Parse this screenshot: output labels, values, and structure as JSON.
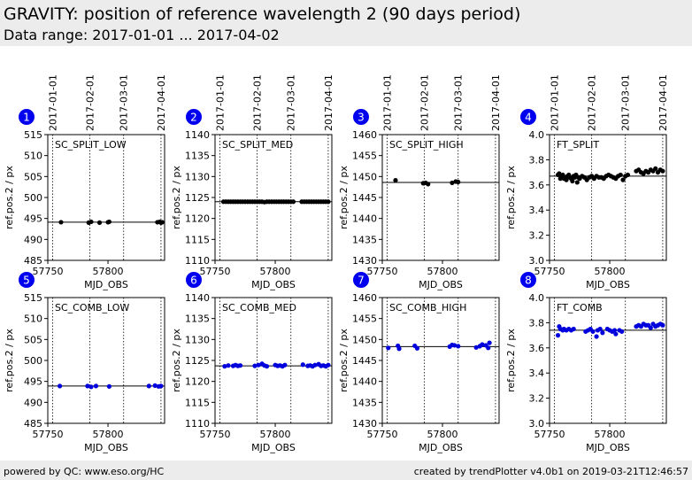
{
  "header": {
    "title": "GRAVITY: position of reference wavelength 2 (90 days period)",
    "subtitle": "Data range: 2017-01-01 ... 2017-04-02"
  },
  "footer": {
    "left": "powered by QC: www.eso.org/HC",
    "right": "created by trendPlotter v4.0b1 on 2019-03-21T12:46:57"
  },
  "date_labels": [
    "2017-01-01",
    "2017-02-01",
    "2017-03-01",
    "2017-04-01"
  ],
  "date_mjds": [
    57754,
    57785,
    57813,
    57844
  ],
  "colors": {
    "upper": "#000000",
    "lower": "#0000dd",
    "badge": "#0000ee"
  },
  "chart_data": [
    {
      "type": "scatter",
      "panel": "1",
      "title": "SC_SPLIT_LOW",
      "xlabel": "MJD_OBS",
      "ylabel": "ref.pos.2 / px",
      "xlim": [
        57750,
        57847
      ],
      "xticks": [
        57750,
        57800
      ],
      "ylim": [
        485,
        515
      ],
      "yticks": [
        485,
        490,
        495,
        500,
        505,
        510,
        515
      ],
      "ref": 494.1,
      "x": [
        57761,
        57784,
        57786,
        57793,
        57800,
        57801,
        57841,
        57843,
        57844,
        57845
      ],
      "y": [
        494.1,
        494.0,
        494.2,
        494.0,
        494.1,
        494.2,
        494.1,
        494.2,
        494.0,
        494.1
      ]
    },
    {
      "type": "scatter",
      "panel": "2",
      "title": "SC_SPLIT_MED",
      "xlabel": "MJD_OBS",
      "ylabel": "ref.pos.2 / px",
      "xlim": [
        57750,
        57847
      ],
      "xticks": [
        57750,
        57800
      ],
      "ylim": [
        1110,
        1140
      ],
      "yticks": [
        1110,
        1115,
        1120,
        1125,
        1130,
        1135,
        1140
      ],
      "ref": 1124.0,
      "x": [
        57757,
        57759,
        57761,
        57763,
        57765,
        57767,
        57769,
        57771,
        57773,
        57775,
        57777,
        57779,
        57781,
        57783,
        57785,
        57787,
        57789,
        57791,
        57793,
        57795,
        57797,
        57799,
        57801,
        57803,
        57805,
        57807,
        57809,
        57811,
        57813,
        57815,
        57822,
        57824,
        57826,
        57828,
        57830,
        57832,
        57834,
        57836,
        57838,
        57840,
        57842,
        57844
      ],
      "y": [
        1124.0,
        1124.0,
        1124.0,
        1124.0,
        1124.0,
        1124.0,
        1124.0,
        1124.0,
        1124.0,
        1124.0,
        1124.0,
        1124.0,
        1124.0,
        1124.0,
        1124.0,
        1124.0,
        1124.0,
        1123.9,
        1124.0,
        1124.0,
        1124.0,
        1124.0,
        1124.0,
        1124.0,
        1124.0,
        1124.0,
        1124.0,
        1124.0,
        1124.0,
        1124.0,
        1124.0,
        1124.0,
        1124.0,
        1124.0,
        1124.0,
        1124.0,
        1124.0,
        1124.0,
        1124.0,
        1124.0,
        1124.0,
        1124.0
      ]
    },
    {
      "type": "scatter",
      "panel": "3",
      "title": "SC_SPLIT_HIGH",
      "xlabel": "MJD_OBS",
      "ylabel": "ref.pos.2 / px",
      "xlim": [
        57750,
        57847
      ],
      "xticks": [
        57750,
        57800
      ],
      "ylim": [
        1430,
        1460
      ],
      "yticks": [
        1430,
        1435,
        1440,
        1445,
        1450,
        1455,
        1460
      ],
      "ref": 1448.6,
      "x": [
        57761,
        57784,
        57786,
        57788,
        57808,
        57811,
        57813
      ],
      "y": [
        1449.1,
        1448.4,
        1448.5,
        1448.2,
        1448.5,
        1448.8,
        1448.7
      ]
    },
    {
      "type": "scatter",
      "panel": "4",
      "title": "FT_SPLIT",
      "xlabel": "MJD_OBS",
      "ylabel": "ref.pos.2 / px",
      "xlim": [
        57750,
        57847
      ],
      "xticks": [
        57750,
        57800
      ],
      "ylim": [
        3.0,
        4.0
      ],
      "yticks": [
        3.0,
        3.2,
        3.4,
        3.6,
        3.8,
        4.0
      ],
      "ref": 3.67,
      "x": [
        57757,
        57758,
        57759,
        57760,
        57761,
        57762,
        57763,
        57764,
        57765,
        57766,
        57767,
        57768,
        57769,
        57770,
        57771,
        57772,
        57773,
        57774,
        57775,
        57777,
        57779,
        57781,
        57783,
        57785,
        57787,
        57789,
        57791,
        57793,
        57795,
        57797,
        57799,
        57801,
        57803,
        57805,
        57807,
        57809,
        57811,
        57813,
        57815,
        57822,
        57824,
        57826,
        57828,
        57830,
        57832,
        57834,
        57836,
        57838,
        57840,
        57842,
        57844
      ],
      "y": [
        3.68,
        3.69,
        3.65,
        3.66,
        3.68,
        3.65,
        3.66,
        3.64,
        3.67,
        3.68,
        3.66,
        3.65,
        3.63,
        3.67,
        3.66,
        3.68,
        3.62,
        3.66,
        3.65,
        3.67,
        3.66,
        3.64,
        3.66,
        3.67,
        3.65,
        3.67,
        3.66,
        3.66,
        3.65,
        3.67,
        3.68,
        3.67,
        3.66,
        3.65,
        3.67,
        3.68,
        3.64,
        3.67,
        3.68,
        3.71,
        3.72,
        3.7,
        3.69,
        3.71,
        3.7,
        3.72,
        3.71,
        3.73,
        3.7,
        3.72,
        3.71
      ]
    },
    {
      "type": "scatter",
      "panel": "5",
      "title": "SC_COMB_LOW",
      "xlabel": "MJD_OBS",
      "ylabel": "ref.pos.2 / px",
      "xlim": [
        57750,
        57847
      ],
      "xticks": [
        57750,
        57800
      ],
      "ylim": [
        485,
        515
      ],
      "yticks": [
        485,
        490,
        495,
        500,
        505,
        510,
        515
      ],
      "ref": 493.9,
      "x": [
        57760,
        57783,
        57786,
        57790,
        57801,
        57834,
        57839,
        57842,
        57844
      ],
      "y": [
        493.9,
        493.9,
        493.7,
        493.9,
        493.8,
        493.9,
        494.0,
        493.8,
        493.9
      ]
    },
    {
      "type": "scatter",
      "panel": "6",
      "title": "SC_COMB_MED",
      "xlabel": "MJD_OBS",
      "ylabel": "ref.pos.2 / px",
      "xlim": [
        57750,
        57847
      ],
      "xticks": [
        57750,
        57800
      ],
      "ylim": [
        1110,
        1140
      ],
      "yticks": [
        1110,
        1115,
        1120,
        1125,
        1130,
        1135,
        1140
      ],
      "ref": 1123.7,
      "x": [
        57758,
        57761,
        57765,
        57767,
        57769,
        57771,
        57783,
        57786,
        57789,
        57791,
        57793,
        57800,
        57802,
        57804,
        57806,
        57808,
        57823,
        57827,
        57829,
        57831,
        57833,
        57836,
        57838,
        57840,
        57842,
        57844
      ],
      "y": [
        1123.6,
        1123.8,
        1123.7,
        1123.9,
        1123.7,
        1123.8,
        1123.7,
        1123.9,
        1124.2,
        1123.8,
        1123.6,
        1123.9,
        1123.7,
        1123.8,
        1123.6,
        1123.9,
        1124.0,
        1123.7,
        1123.8,
        1123.6,
        1123.9,
        1124.1,
        1123.7,
        1123.8,
        1123.6,
        1123.9
      ]
    },
    {
      "type": "scatter",
      "panel": "7",
      "title": "SC_COMB_HIGH",
      "xlabel": "MJD_OBS",
      "ylabel": "ref.pos.2 / px",
      "xlim": [
        57750,
        57847
      ],
      "xticks": [
        57750,
        57800
      ],
      "ylim": [
        1430,
        1460
      ],
      "yticks": [
        1430,
        1435,
        1440,
        1445,
        1450,
        1455,
        1460
      ],
      "ref": 1448.3,
      "x": [
        57755,
        57763,
        57764,
        57777,
        57779,
        57806,
        57808,
        57810,
        57813,
        57828,
        57831,
        57833,
        57836,
        57838,
        57839
      ],
      "y": [
        1448.0,
        1448.5,
        1447.8,
        1448.5,
        1447.9,
        1448.3,
        1448.7,
        1448.6,
        1448.4,
        1448.1,
        1448.4,
        1448.8,
        1448.6,
        1448.0,
        1449.2
      ]
    },
    {
      "type": "scatter",
      "panel": "8",
      "title": "FT_COMB",
      "xlabel": "MJD_OBS",
      "ylabel": "ref.pos.2 / px",
      "xlim": [
        57750,
        57847
      ],
      "xticks": [
        57750,
        57800
      ],
      "ylim": [
        3.0,
        4.0
      ],
      "yticks": [
        3.0,
        3.2,
        3.4,
        3.6,
        3.8,
        4.0
      ],
      "ref": 3.74,
      "x": [
        57757,
        57758,
        57759,
        57761,
        57762,
        57764,
        57766,
        57768,
        57770,
        57780,
        57782,
        57784,
        57786,
        57789,
        57790,
        57792,
        57794,
        57798,
        57800,
        57802,
        57804,
        57805,
        57808,
        57810,
        57822,
        57824,
        57826,
        57828,
        57830,
        57832,
        57834,
        57836,
        57838,
        57840,
        57842,
        57844
      ],
      "y": [
        3.7,
        3.77,
        3.75,
        3.74,
        3.75,
        3.74,
        3.75,
        3.74,
        3.75,
        3.73,
        3.74,
        3.75,
        3.73,
        3.69,
        3.74,
        3.75,
        3.72,
        3.75,
        3.74,
        3.73,
        3.74,
        3.71,
        3.74,
        3.73,
        3.77,
        3.78,
        3.77,
        3.79,
        3.78,
        3.78,
        3.76,
        3.79,
        3.77,
        3.78,
        3.79,
        3.78
      ]
    }
  ]
}
